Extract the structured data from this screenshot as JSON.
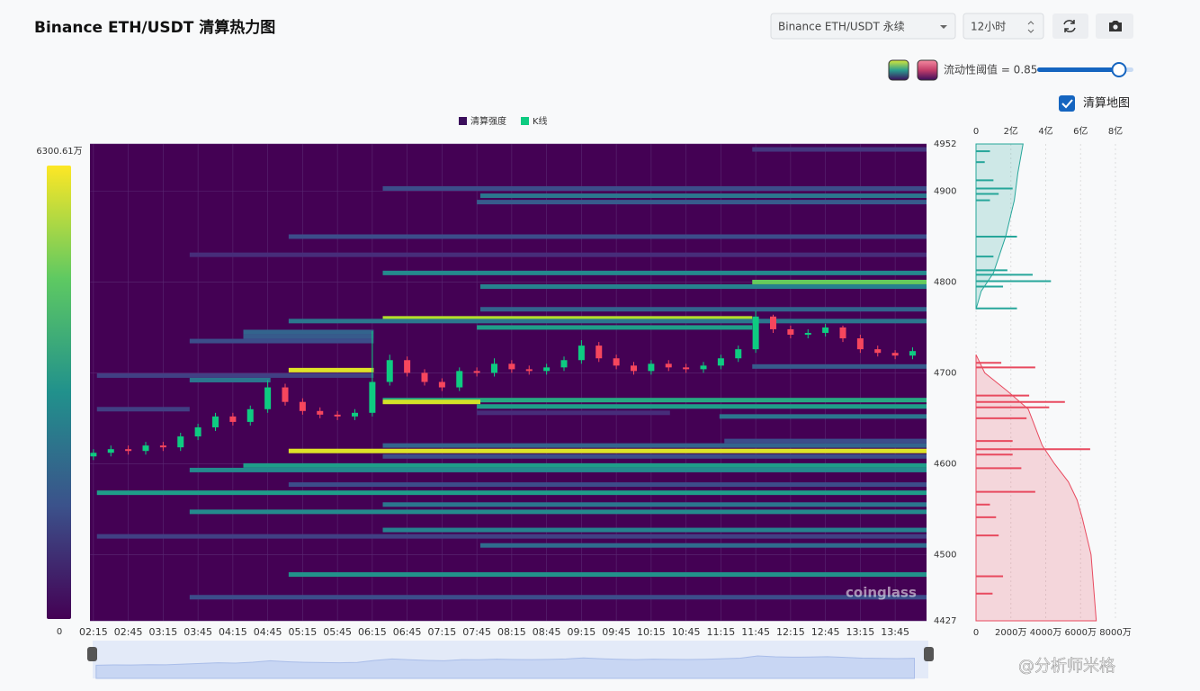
{
  "header": {
    "title": "Binance ETH/USDT 清算热力图"
  },
  "controls": {
    "market": "Binance ETH/USDT 永续",
    "range": "12小时",
    "threshold_text": "流动性阈值 = 0.85",
    "threshold": 0.85,
    "checkbox": "清算地图"
  },
  "watermark": "@分析师米格",
  "chart_data": [
    {
      "type": "heatmap",
      "legend": [
        {
          "name": "清算强度",
          "color": "#3b0f5c"
        },
        {
          "name": "K线",
          "color": "#0ecb81"
        }
      ],
      "xlim": [
        2.2,
        14.2
      ],
      "xticks": [
        {
          "value": 2.25,
          "label": "02:15"
        },
        {
          "value": 2.75,
          "label": "02:45"
        },
        {
          "value": 3.25,
          "label": "03:15"
        },
        {
          "value": 3.75,
          "label": "03:45"
        },
        {
          "value": 4.25,
          "label": "04:15"
        },
        {
          "value": 4.75,
          "label": "04:45"
        },
        {
          "value": 5.25,
          "label": "05:15"
        },
        {
          "value": 5.75,
          "label": "05:45"
        },
        {
          "value": 6.25,
          "label": "06:15"
        },
        {
          "value": 6.75,
          "label": "06:45"
        },
        {
          "value": 7.25,
          "label": "07:15"
        },
        {
          "value": 7.75,
          "label": "07:45"
        },
        {
          "value": 8.25,
          "label": "08:15"
        },
        {
          "value": 8.75,
          "label": "08:45"
        },
        {
          "value": 9.25,
          "label": "09:15"
        },
        {
          "value": 9.75,
          "label": "09:45"
        },
        {
          "value": 10.25,
          "label": "10:15"
        },
        {
          "value": 10.75,
          "label": "10:45"
        },
        {
          "value": 11.25,
          "label": "11:15"
        },
        {
          "value": 11.75,
          "label": "11:45"
        },
        {
          "value": 12.25,
          "label": "12:15"
        },
        {
          "value": 12.75,
          "label": "12:45"
        },
        {
          "value": 13.25,
          "label": "13:15"
        },
        {
          "value": 13.75,
          "label": "13:45"
        }
      ],
      "ylim": [
        4427,
        4952
      ],
      "yticks": [
        4427,
        4500,
        4600,
        4700,
        4800,
        4900,
        4952
      ],
      "grid": true,
      "clim": [
        0,
        6300.61
      ],
      "cticks": [
        {
          "value": 6300.61,
          "label": "6300.61万"
        },
        0
      ],
      "colormap": "viridis",
      "bands": [
        {
          "y": 4946,
          "x0": 11.7,
          "x1": 14.2,
          "value": 1000
        },
        {
          "y": 4903,
          "x0": 6.4,
          "x1": 14.2,
          "value": 1500
        },
        {
          "y": 4895,
          "x0": 7.8,
          "x1": 14.2,
          "value": 2500
        },
        {
          "y": 4888,
          "x0": 7.75,
          "x1": 14.2,
          "value": 1800
        },
        {
          "y": 4850,
          "x0": 5.05,
          "x1": 14.2,
          "value": 1500
        },
        {
          "y": 4830,
          "x0": 3.63,
          "x1": 14.2,
          "value": 800
        },
        {
          "y": 4810,
          "x0": 6.4,
          "x1": 14.2,
          "value": 3000
        },
        {
          "y": 4800,
          "x0": 11.7,
          "x1": 14.2,
          "value": 4800
        },
        {
          "y": 4795,
          "x0": 7.8,
          "x1": 14.2,
          "value": 2800
        },
        {
          "y": 4770,
          "x0": 7.8,
          "x1": 14.2,
          "value": 2000
        },
        {
          "y": 4760,
          "x0": 6.4,
          "x1": 11.7,
          "value": 5600
        },
        {
          "y": 4757,
          "x0": 5.05,
          "x1": 14.2,
          "value": 2500
        },
        {
          "y": 4750,
          "x0": 7.75,
          "x1": 11.7,
          "value": 3500
        },
        {
          "y": 4745,
          "x0": 4.4,
          "x1": 6.27,
          "value": 2000
        },
        {
          "y": 4740,
          "x0": 4.4,
          "x1": 6.27,
          "value": 1800
        },
        {
          "y": 4735,
          "x0": 3.63,
          "x1": 6.27,
          "value": 1500
        },
        {
          "y": 4707,
          "x0": 11.7,
          "x1": 14.2,
          "value": 1800
        },
        {
          "y": 4703,
          "x0": 5.05,
          "x1": 6.27,
          "value": 6000
        },
        {
          "y": 4697,
          "x0": 2.3,
          "x1": 6.27,
          "value": 1200
        },
        {
          "y": 4692,
          "x0": 3.63,
          "x1": 4.79,
          "value": 2500
        },
        {
          "y": 4670,
          "x0": 6.4,
          "x1": 14.2,
          "value": 3800
        },
        {
          "y": 4668,
          "x0": 6.4,
          "x1": 7.8,
          "value": 5900
        },
        {
          "y": 4663,
          "x0": 7.75,
          "x1": 14.2,
          "value": 3500
        },
        {
          "y": 4660,
          "x0": 2.3,
          "x1": 3.63,
          "value": 1200
        },
        {
          "y": 4656,
          "x0": 7.75,
          "x1": 10.52,
          "value": 800
        },
        {
          "y": 4652,
          "x0": 11.23,
          "x1": 14.2,
          "value": 2500
        },
        {
          "y": 4625,
          "x0": 11.3,
          "x1": 14.2,
          "value": 1500
        },
        {
          "y": 4620,
          "x0": 6.4,
          "x1": 14.2,
          "value": 2000
        },
        {
          "y": 4614,
          "x0": 5.05,
          "x1": 14.2,
          "value": 6000
        },
        {
          "y": 4608,
          "x0": 6.4,
          "x1": 14.2,
          "value": 1500
        },
        {
          "y": 4598,
          "x0": 4.4,
          "x1": 14.2,
          "value": 3500
        },
        {
          "y": 4593,
          "x0": 3.63,
          "x1": 14.2,
          "value": 3000
        },
        {
          "y": 4577,
          "x0": 5.05,
          "x1": 14.2,
          "value": 1500
        },
        {
          "y": 4568,
          "x0": 2.3,
          "x1": 14.2,
          "value": 3500
        },
        {
          "y": 4555,
          "x0": 6.4,
          "x1": 14.2,
          "value": 2500
        },
        {
          "y": 4547,
          "x0": 3.63,
          "x1": 14.2,
          "value": 3000
        },
        {
          "y": 4527,
          "x0": 6.4,
          "x1": 14.2,
          "value": 2800
        },
        {
          "y": 4520,
          "x0": 2.3,
          "x1": 14.2,
          "value": 1200
        },
        {
          "y": 4510,
          "x0": 7.8,
          "x1": 14.2,
          "value": 2200
        },
        {
          "y": 4478,
          "x0": 5.05,
          "x1": 14.2,
          "value": 3200
        },
        {
          "y": 4453,
          "x0": 3.63,
          "x1": 14.2,
          "value": 1500
        }
      ],
      "candles": {
        "up_color": "#0ecb81",
        "down_color": "#f6465d",
        "x": [
          2.25,
          2.5,
          2.75,
          3,
          3.25,
          3.5,
          3.75,
          4,
          4.25,
          4.5,
          4.75,
          5,
          5.25,
          5.5,
          5.75,
          6,
          6.25,
          6.5,
          6.75,
          7,
          7.25,
          7.5,
          7.75,
          8,
          8.25,
          8.5,
          8.75,
          9,
          9.25,
          9.5,
          9.75,
          10,
          10.25,
          10.5,
          10.75,
          11,
          11.25,
          11.5,
          11.75,
          12,
          12.25,
          12.5,
          12.75,
          13,
          13.25,
          13.5,
          13.75,
          14
        ],
        "open": [
          4608,
          4612,
          4616,
          4614,
          4620,
          4618,
          4630,
          4640,
          4652,
          4646,
          4660,
          4684,
          4668,
          4658,
          4654,
          4652,
          4656,
          4690,
          4714,
          4700,
          4690,
          4684,
          4702,
          4700,
          4710,
          4704,
          4702,
          4706,
          4714,
          4730,
          4716,
          4708,
          4702,
          4710,
          4706,
          4704,
          4708,
          4716,
          4726,
          4762,
          4748,
          4742,
          4744,
          4750,
          4738,
          4726,
          4722,
          4719
        ],
        "high": [
          4616,
          4620,
          4620,
          4624,
          4624,
          4634,
          4644,
          4656,
          4656,
          4664,
          4692,
          4688,
          4672,
          4662,
          4658,
          4660,
          4746,
          4720,
          4718,
          4704,
          4694,
          4706,
          4706,
          4716,
          4714,
          4708,
          4710,
          4718,
          4736,
          4734,
          4720,
          4712,
          4714,
          4714,
          4710,
          4712,
          4720,
          4730,
          4768,
          4764,
          4752,
          4748,
          4754,
          4752,
          4742,
          4730,
          4725,
          4728
        ],
        "low": [
          4604,
          4608,
          4610,
          4610,
          4614,
          4614,
          4626,
          4636,
          4642,
          4642,
          4656,
          4664,
          4654,
          4650,
          4648,
          4648,
          4652,
          4686,
          4696,
          4686,
          4680,
          4680,
          4696,
          4696,
          4700,
          4698,
          4698,
          4702,
          4710,
          4712,
          4704,
          4698,
          4698,
          4702,
          4700,
          4700,
          4704,
          4712,
          4722,
          4744,
          4738,
          4738,
          4740,
          4734,
          4722,
          4718,
          4715,
          4715
        ],
        "close": [
          4612,
          4616,
          4614,
          4620,
          4618,
          4630,
          4640,
          4652,
          4646,
          4660,
          4684,
          4668,
          4658,
          4654,
          4652,
          4656,
          4690,
          4714,
          4700,
          4690,
          4684,
          4702,
          4700,
          4710,
          4704,
          4702,
          4706,
          4714,
          4730,
          4716,
          4708,
          4702,
          4710,
          4706,
          4704,
          4708,
          4716,
          4726,
          4762,
          4748,
          4742,
          4744,
          4750,
          4738,
          4726,
          4722,
          4719,
          4724
        ]
      },
      "watermark": "coinglass"
    },
    {
      "type": "liquidation_map",
      "ylim": [
        4427,
        4952
      ],
      "xlim": [
        0,
        8000
      ],
      "xticks": [
        0,
        {
          "value": 2000,
          "label": "2000万"
        },
        {
          "value": 4000,
          "label": "4000万"
        },
        {
          "value": 6000,
          "label": "6000万"
        },
        {
          "value": 8000,
          "label": "8000万"
        }
      ],
      "x2lim": [
        0,
        80000
      ],
      "x2ticks": [
        0,
        {
          "value": 20000,
          "label": "2亿"
        },
        {
          "value": 40000,
          "label": "4亿"
        },
        {
          "value": 60000,
          "label": "6亿"
        },
        {
          "value": 80000,
          "label": "8亿"
        }
      ],
      "grid": true,
      "series": [
        {
          "color": "#26a69a",
          "y": [
            4944,
            4932,
            4912,
            4903,
            4897,
            4890,
            4850,
            4828,
            4813,
            4808,
            4801,
            4795,
            4771
          ],
          "values": [
            800,
            500,
            1000,
            2100,
            1300,
            800,
            2350,
            1000,
            1800,
            3250,
            4300,
            1550,
            2350
          ]
        },
        {
          "color": "#e84a5f",
          "y": [
            4711,
            4706,
            4675,
            4668,
            4662,
            4650,
            4625,
            4616,
            4610,
            4595,
            4569,
            4555,
            4541,
            4521,
            4476,
            4457
          ],
          "values": [
            1450,
            3400,
            3050,
            5100,
            4200,
            2900,
            2100,
            6550,
            2100,
            2600,
            3400,
            800,
            1150,
            1300,
            1550,
            950
          ]
        }
      ],
      "cumulative": [
        {
          "color": "#26a69a",
          "axis": "x2",
          "y": [
            4770,
            4790,
            4810,
            4850,
            4890,
            4920,
            4952
          ],
          "values": [
            0,
            3000,
            10000,
            17000,
            22000,
            24000,
            27000
          ]
        },
        {
          "color": "#e84a5f",
          "axis": "x2",
          "y": [
            4720,
            4700,
            4680,
            4660,
            4640,
            4620,
            4600,
            4580,
            4560,
            4540,
            4500,
            4427
          ],
          "values": [
            0,
            5000,
            18000,
            30000,
            34000,
            38000,
            45000,
            53000,
            58000,
            61000,
            66000,
            69000
          ]
        }
      ]
    }
  ]
}
